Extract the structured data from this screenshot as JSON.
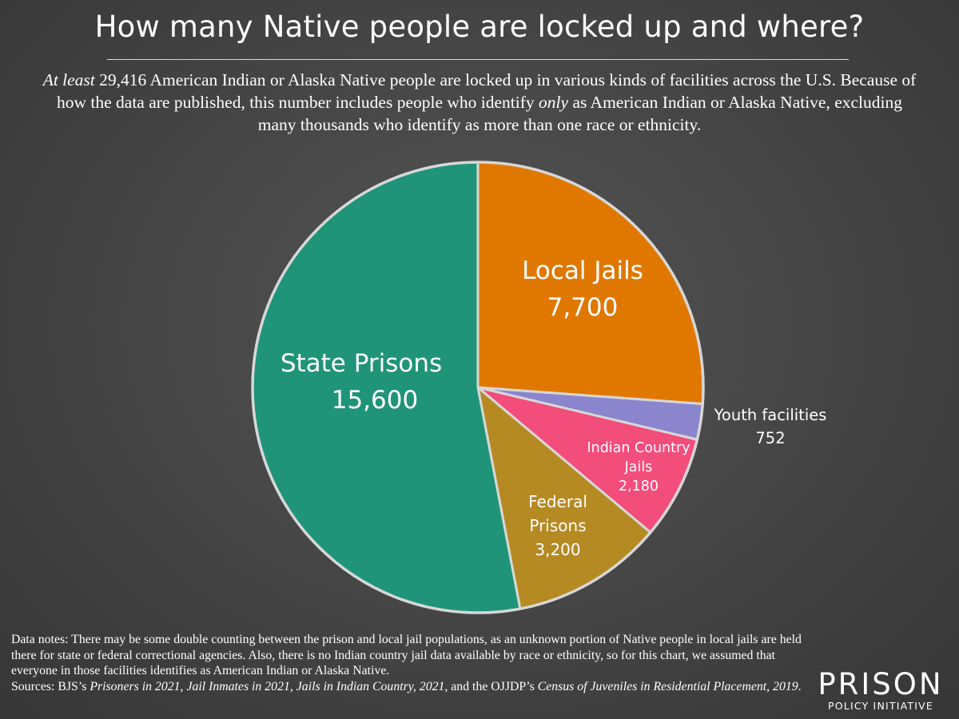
{
  "title": "How many Native people are locked up and where?",
  "intro": {
    "lead_italic": "At least",
    "part1": " 29,416 American Indian or Alaska Native people are locked up in various kinds of facilities across the U.S. Because of how the data are published, this number includes people who identify ",
    "only_italic": "only",
    "part2": " as American Indian or Alaska Native, excluding many thousands who identify as more than one race or ethnicity."
  },
  "chart_data": {
    "type": "pie",
    "title": "How many Native people are locked up and where?",
    "total": 29416,
    "slices": [
      {
        "label": "Local Jails",
        "value": 7700,
        "value_text": "7,700",
        "color": "#e07800"
      },
      {
        "label": "Youth facilities",
        "value": 752,
        "value_text": "752",
        "color": "#8a85cc"
      },
      {
        "label": "Indian Country Jails",
        "value": 2180,
        "value_text": "2,180",
        "color": "#f24d7b"
      },
      {
        "label": "Federal Prisons",
        "value": 3200,
        "value_text": "3,200",
        "color": "#b58a22"
      },
      {
        "label": "State Prisons",
        "value": 15600,
        "value_text": "15,600",
        "color": "#1f9479"
      }
    ],
    "slice_border_color": "#d7d7d7"
  },
  "notes": {
    "part1": "Data notes: There may be some double counting between the prison and local jail populations, as an unknown portion of Native people in local jails are held there for state or federal correctional agencies. Also, there is no Indian country jail data available by race or ethnicity, so for this chart, we assumed that everyone in those facilities identifies as American Indian or Alaska Native.",
    "sources_prefix": "Sources: BJS’s ",
    "src1": "Prisoners in 2021",
    "sep1": ", ",
    "src2": "Jail Inmates in 2021",
    "sep2": ", ",
    "src3": "Jails in Indian Country, 2021,",
    "sep3": " and the OJJDP’s ",
    "src4": "Census of Juveniles in Residential Placement, 2019",
    "end": "."
  },
  "logo": {
    "top": "PRISON",
    "bottom": "POLICY INITIATIVE"
  }
}
